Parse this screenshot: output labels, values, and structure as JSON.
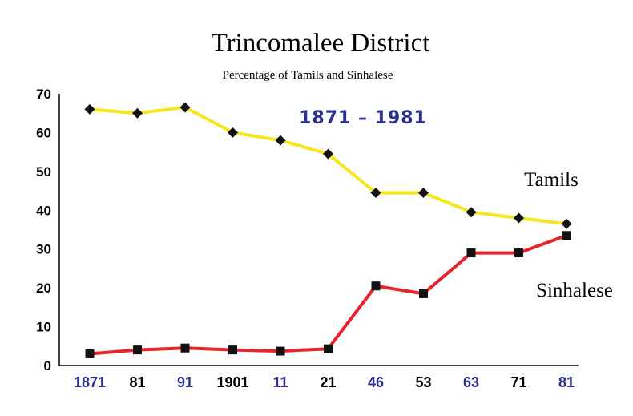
{
  "chart_data": {
    "type": "line",
    "title": "Trincomalee District",
    "subtitle": "Percentage of Tamils and Sinhalese",
    "annotation": "1871 – 1981",
    "xlabel": "",
    "ylabel": "",
    "ylim": [
      0,
      70
    ],
    "yticks": [
      "70",
      "60",
      "50",
      "40",
      "30",
      "20",
      "10",
      "0"
    ],
    "categories": [
      "1871",
      "81",
      "91",
      "1901",
      "11",
      "21",
      "46",
      "53",
      "63",
      "71",
      "81"
    ],
    "category_colors": [
      "#2b2f8f",
      "#000000",
      "#2b2f8f",
      "#000000",
      "#2b2f8f",
      "#000000",
      "#2b2f8f",
      "#000000",
      "#2b2f8f",
      "#000000",
      "#2b2f8f"
    ],
    "grid": false,
    "series": [
      {
        "name": "Tamils",
        "color": "#f5e61e",
        "marker": "diamond",
        "values": [
          66,
          65,
          66.5,
          60,
          58,
          54.5,
          44.5,
          44.5,
          39.5,
          38,
          36.5
        ]
      },
      {
        "name": "Sinhalese",
        "color": "#e8232a",
        "marker": "square",
        "values": [
          3,
          4,
          4.5,
          4,
          3.7,
          4.3,
          20.5,
          18.5,
          29,
          29,
          33.5
        ]
      }
    ]
  }
}
